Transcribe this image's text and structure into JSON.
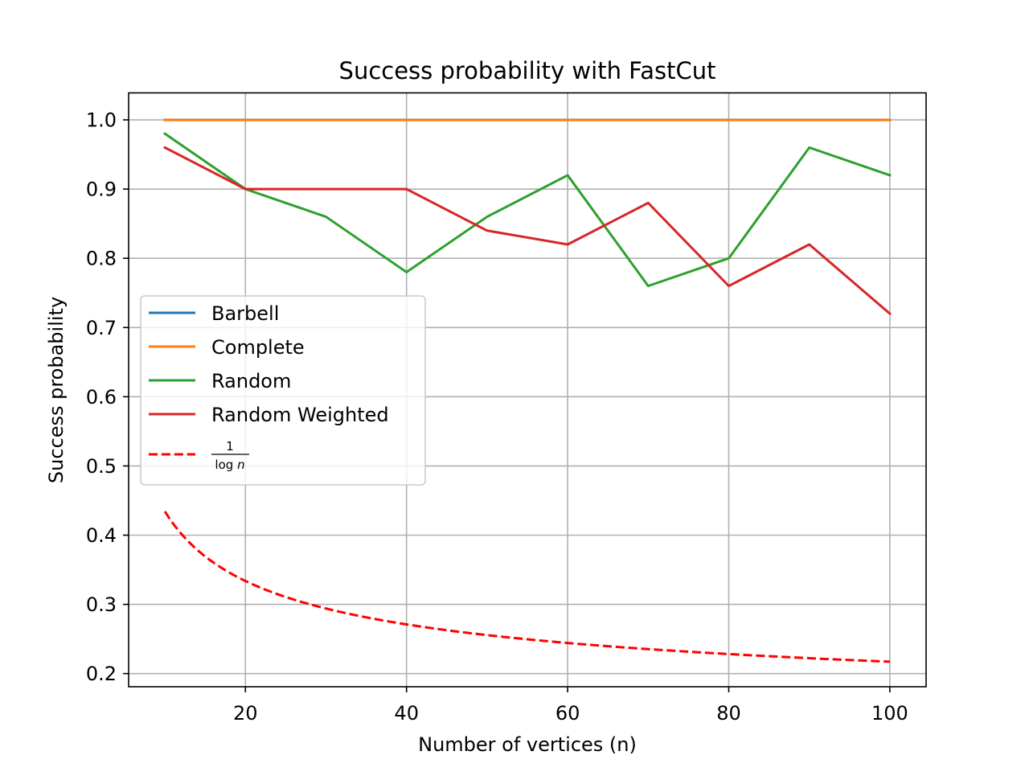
{
  "chart_data": {
    "type": "line",
    "title": "Success probability with FastCut",
    "xlabel": "Number of vertices (n)",
    "ylabel": "Success probability",
    "xlim": [
      5.5,
      104.5
    ],
    "ylim": [
      0.181,
      1.039
    ],
    "x_ticks": [
      20,
      40,
      60,
      80,
      100
    ],
    "x_tick_labels": [
      "20",
      "40",
      "60",
      "80",
      "100"
    ],
    "y_ticks": [
      0.2,
      0.3,
      0.4,
      0.5,
      0.6,
      0.7,
      0.8,
      0.9,
      1.0
    ],
    "y_tick_labels": [
      "0.2",
      "0.3",
      "0.4",
      "0.5",
      "0.6",
      "0.7",
      "0.8",
      "0.9",
      "1.0"
    ],
    "grid": true,
    "legend_position": "center-left",
    "x": [
      10,
      20,
      30,
      40,
      50,
      60,
      70,
      80,
      90,
      100
    ],
    "series": [
      {
        "name": "Barbell",
        "color": "#1f77b4",
        "style": "solid",
        "values": [
          1.0,
          1.0,
          1.0,
          1.0,
          1.0,
          1.0,
          1.0,
          1.0,
          1.0,
          1.0
        ]
      },
      {
        "name": "Complete",
        "color": "#ff7f0e",
        "style": "solid",
        "values": [
          1.0,
          1.0,
          1.0,
          1.0,
          1.0,
          1.0,
          1.0,
          1.0,
          1.0,
          1.0
        ]
      },
      {
        "name": "Random",
        "color": "#2ca02c",
        "style": "solid",
        "values": [
          0.98,
          0.9,
          0.86,
          0.78,
          0.86,
          0.92,
          0.76,
          0.8,
          0.96,
          0.92
        ]
      },
      {
        "name": "Random Weighted",
        "color": "#d62728",
        "style": "solid",
        "values": [
          0.96,
          0.9,
          0.9,
          0.9,
          0.84,
          0.82,
          0.88,
          0.76,
          0.82,
          0.72
        ]
      },
      {
        "name": "1/log n",
        "color": "#ff0000",
        "style": "dashed",
        "formula": "1/log(n)",
        "values": [
          0.434,
          0.334,
          0.294,
          0.271,
          0.256,
          0.245,
          0.236,
          0.229,
          0.223,
          0.217
        ]
      }
    ],
    "legend_math": {
      "numerator": "1",
      "denominator_log": "log",
      "denominator_var": "n"
    }
  }
}
